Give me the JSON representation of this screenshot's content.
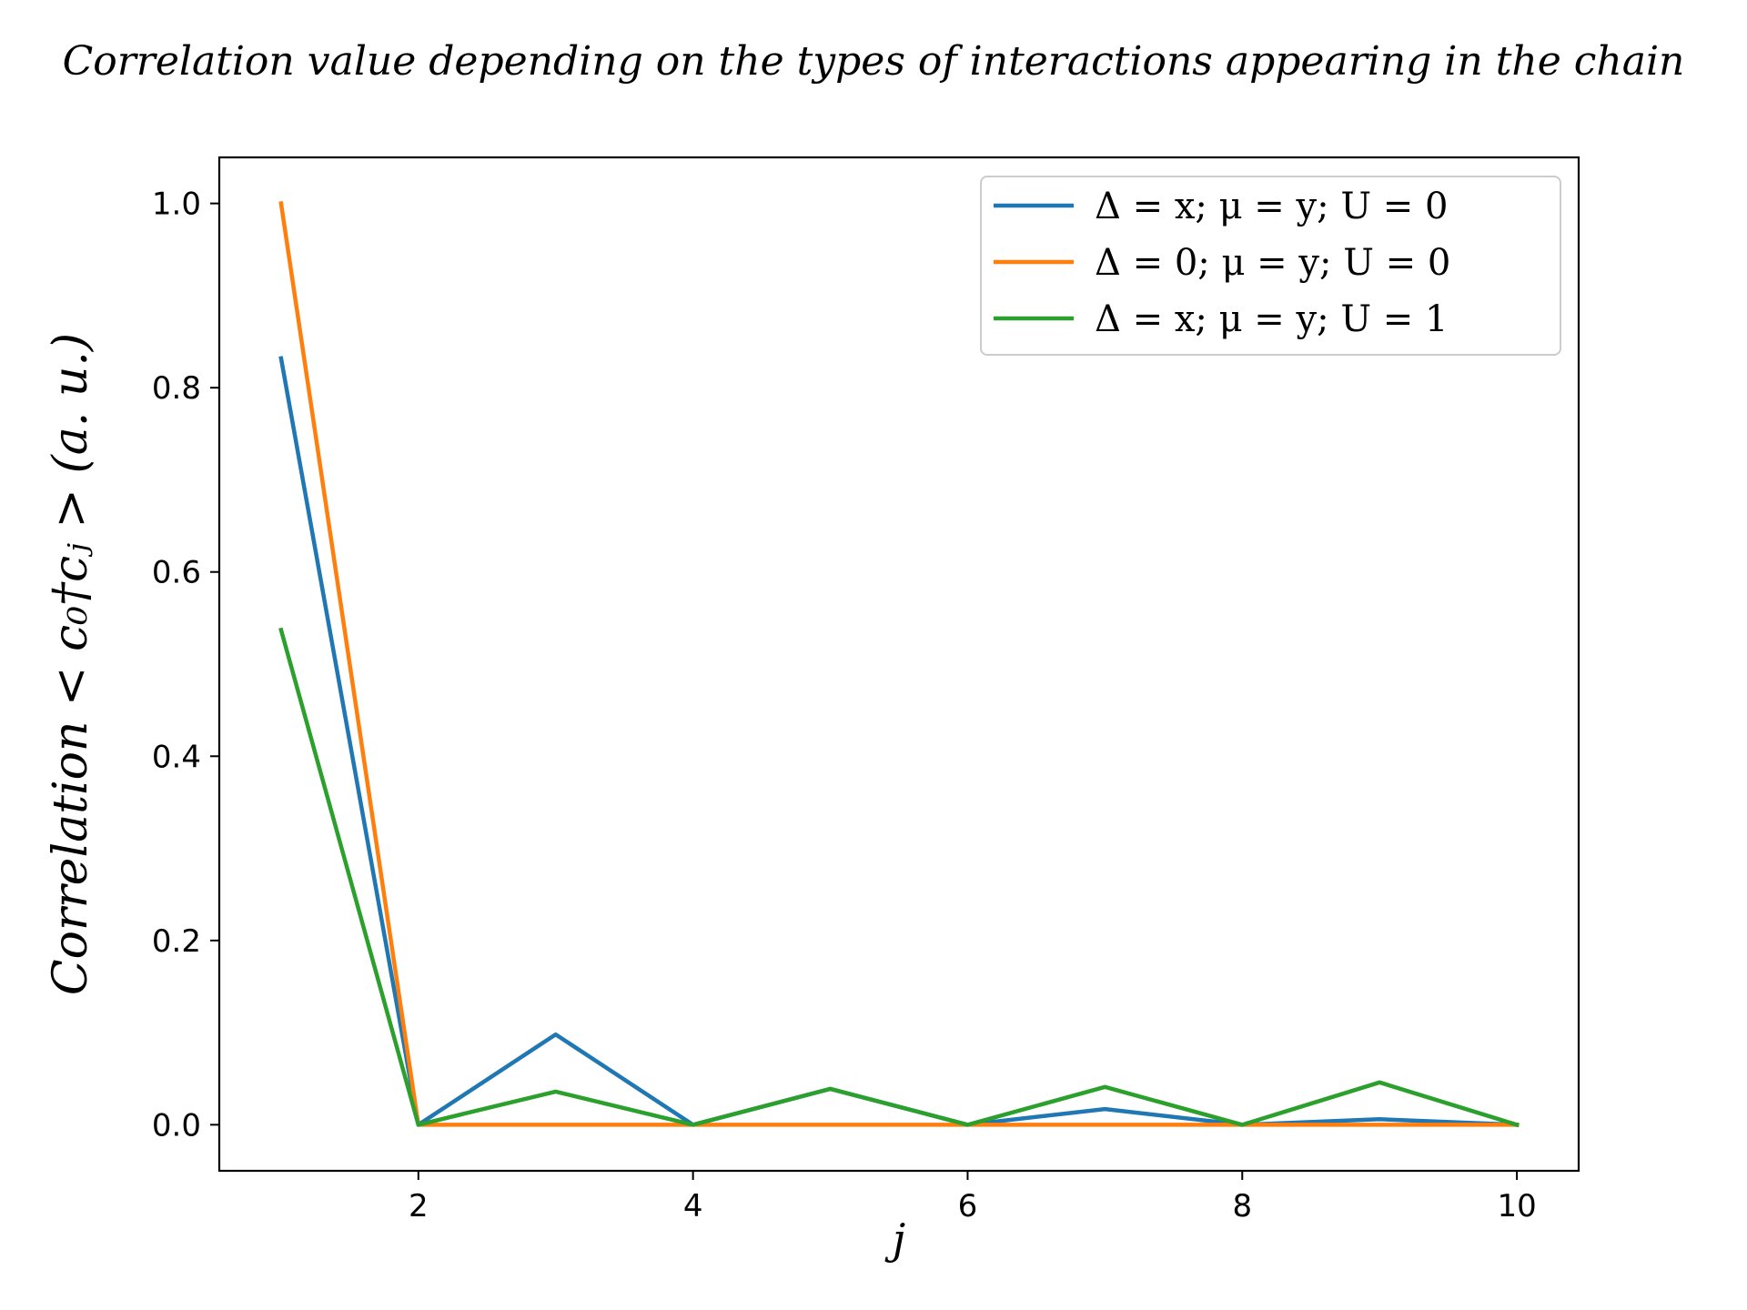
{
  "chart_data": {
    "type": "line",
    "title": "Correlation value depending on the types of interactions appearing in the chain",
    "xlabel": "j",
    "ylabel": "Correlation  < c₀†cⱼ >  (a. u.)",
    "xlim": [
      0.55,
      10.45
    ],
    "ylim": [
      -0.05,
      1.05
    ],
    "xticks": [
      2,
      4,
      6,
      8,
      10
    ],
    "yticks": [
      0.0,
      0.2,
      0.4,
      0.6,
      0.8,
      1.0
    ],
    "xtick_labels": [
      "2",
      "4",
      "6",
      "8",
      "10"
    ],
    "ytick_labels": [
      "0.0",
      "0.2",
      "0.4",
      "0.6",
      "0.8",
      "1.0"
    ],
    "x": [
      1,
      2,
      3,
      4,
      5,
      6,
      7,
      8,
      9,
      10
    ],
    "series": [
      {
        "name": "Δ = x;  μ = y;  U = 0",
        "color": "#1f77b4",
        "values": [
          0.832,
          0.0,
          0.098,
          0.0,
          0.039,
          0.0,
          0.017,
          0.0,
          0.006,
          0.0
        ]
      },
      {
        "name": "Δ = 0;  μ = y;  U = 0",
        "color": "#ff7f0e",
        "values": [
          1.0,
          0.0,
          0.0,
          0.0,
          0.0,
          0.0,
          0.0,
          0.0,
          0.0,
          0.0
        ]
      },
      {
        "name": "Δ = x;  μ = y;  U = 1",
        "color": "#2ca02c",
        "values": [
          0.537,
          0.0,
          0.036,
          0.0,
          0.039,
          0.0,
          0.041,
          0.0,
          0.046,
          0.0
        ]
      }
    ],
    "grid": false,
    "legend_position": "top-right"
  }
}
